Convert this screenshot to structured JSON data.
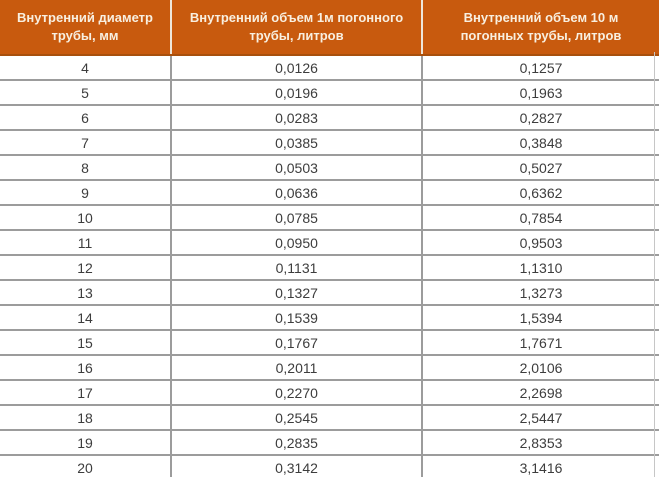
{
  "chart_data": {
    "type": "table",
    "title": "",
    "columns": [
      "Внутренний диаметр трубы, мм",
      "Внутренний объем 1м погонного трубы, литров",
      "Внутренний объем 10 м погонных трубы, литров"
    ],
    "rows": [
      [
        "4",
        "0,0126",
        "0,1257"
      ],
      [
        "5",
        "0,0196",
        "0,1963"
      ],
      [
        "6",
        "0,0283",
        "0,2827"
      ],
      [
        "7",
        "0,0385",
        "0,3848"
      ],
      [
        "8",
        "0,0503",
        "0,5027"
      ],
      [
        "9",
        "0,0636",
        "0,6362"
      ],
      [
        "10",
        "0,0785",
        "0,7854"
      ],
      [
        "11",
        "0,0950",
        "0,9503"
      ],
      [
        "12",
        "0,1131",
        "1,1310"
      ],
      [
        "13",
        "0,1327",
        "1,3273"
      ],
      [
        "14",
        "0,1539",
        "1,5394"
      ],
      [
        "15",
        "0,1767",
        "1,7671"
      ],
      [
        "16",
        "0,2011",
        "2,0106"
      ],
      [
        "17",
        "0,2270",
        "2,2698"
      ],
      [
        "18",
        "0,2545",
        "2,5447"
      ],
      [
        "19",
        "0,2835",
        "2,8353"
      ],
      [
        "20",
        "0,3142",
        "3,1416"
      ]
    ],
    "layout": {
      "grid": "horizontal-and-vertical-dividers",
      "decimal_separator": ","
    }
  },
  "colors": {
    "header_bg": "#c85a0e",
    "header_text": "#f8efe0",
    "divider": "#9c9c9c",
    "cell_text": "#3d3d3d",
    "row_bg": "#ffffff"
  }
}
